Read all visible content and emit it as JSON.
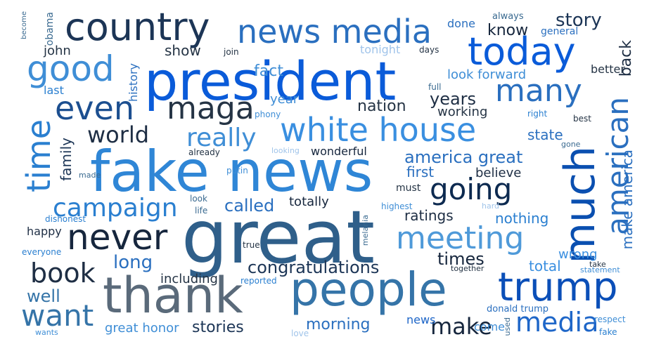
{
  "words": [
    {
      "text": "great",
      "color": "#2f5f8a"
    },
    {
      "text": "fake news",
      "color": "#2f86d6"
    },
    {
      "text": "president",
      "color": "#0a5bd9"
    },
    {
      "text": "people",
      "color": "#3574a8"
    },
    {
      "text": "thank",
      "color": "#5a6a7a"
    },
    {
      "text": "country",
      "color": "#1c3556"
    },
    {
      "text": "news media",
      "color": "#2a6fbf"
    },
    {
      "text": "today",
      "color": "#0a5bd9"
    },
    {
      "text": "trump",
      "color": "#0b4fb8"
    },
    {
      "text": "white house",
      "color": "#3a8fe0"
    },
    {
      "text": "much",
      "color": "#0a4fb0"
    },
    {
      "text": "american",
      "color": "#2a6fbf"
    },
    {
      "text": "never",
      "color": "#16263d"
    },
    {
      "text": "meeting",
      "color": "#4f9ad9"
    },
    {
      "text": "going",
      "color": "#0d2a50"
    },
    {
      "text": "many",
      "color": "#2a6fbf"
    },
    {
      "text": "good",
      "color": "#3f8ed6"
    },
    {
      "text": "even",
      "color": "#1c4f90"
    },
    {
      "text": "maga",
      "color": "#253445"
    },
    {
      "text": "time",
      "color": "#2a7fd0"
    },
    {
      "text": "book",
      "color": "#1e2e44"
    },
    {
      "text": "want",
      "color": "#3574a8"
    },
    {
      "text": "media",
      "color": "#1e66c8"
    },
    {
      "text": "campaign",
      "color": "#2a7fd0"
    },
    {
      "text": "really",
      "color": "#3f8ed6"
    },
    {
      "text": "world",
      "color": "#1e2e44"
    },
    {
      "text": "make",
      "color": "#16263d"
    },
    {
      "text": "congratulations",
      "color": "#1c3556"
    },
    {
      "text": "america great",
      "color": "#2a6fbf"
    },
    {
      "text": "news",
      "color": "#1e66c8"
    },
    {
      "text": "stories",
      "color": "#1c3556"
    },
    {
      "text": "morning",
      "color": "#2a6fbf"
    },
    {
      "text": "long",
      "color": "#2a6fbf"
    },
    {
      "text": "well",
      "color": "#3574a8"
    },
    {
      "text": "called",
      "color": "#2a6fbf"
    },
    {
      "text": "totally",
      "color": "#16263d"
    },
    {
      "text": "story",
      "color": "#1c3556"
    },
    {
      "text": "know",
      "color": "#16263d"
    },
    {
      "text": "show",
      "color": "#253445"
    },
    {
      "text": "fact",
      "color": "#3f8ed6"
    },
    {
      "text": "nation",
      "color": "#253445"
    },
    {
      "text": "years",
      "color": "#1e2e44"
    },
    {
      "text": "first",
      "color": "#2a6fbf"
    },
    {
      "text": "state",
      "color": "#2a6fbf"
    },
    {
      "text": "wonderful",
      "color": "#16263d"
    },
    {
      "text": "ratings",
      "color": "#1e2e44"
    },
    {
      "text": "times",
      "color": "#16263d"
    },
    {
      "text": "total",
      "color": "#3a8fe0"
    },
    {
      "text": "wrong",
      "color": "#3a8fe0"
    },
    {
      "text": "nothing",
      "color": "#2a7fd0"
    },
    {
      "text": "including",
      "color": "#253445"
    },
    {
      "text": "great honor",
      "color": "#3f8ed6"
    },
    {
      "text": "look forward",
      "color": "#3f8ed6"
    },
    {
      "text": "working",
      "color": "#253445"
    },
    {
      "text": "back",
      "color": "#1e2e44"
    },
    {
      "text": "make america",
      "color": "#2a6fbf"
    },
    {
      "text": "family",
      "color": "#1c3556"
    },
    {
      "text": "history",
      "color": "#2a6fbf"
    },
    {
      "text": "year",
      "color": "#3f8ed6"
    },
    {
      "text": "believe",
      "color": "#1e2e44"
    },
    {
      "text": "must",
      "color": "#253445"
    },
    {
      "text": "better",
      "color": "#253445"
    },
    {
      "text": "general",
      "color": "#2a6fbf"
    },
    {
      "text": "tonight",
      "color": "#a0c4ea"
    },
    {
      "text": "john",
      "color": "#253445"
    },
    {
      "text": "last",
      "color": "#2a7fd0"
    },
    {
      "text": "obama",
      "color": "#3a6a90"
    },
    {
      "text": "happy",
      "color": "#1e2e44"
    },
    {
      "text": "done",
      "color": "#2a6fbf"
    },
    {
      "text": "always",
      "color": "#3a6a90"
    },
    {
      "text": "days",
      "color": "#253445"
    },
    {
      "text": "full",
      "color": "#3a6a90"
    },
    {
      "text": "join",
      "color": "#253445"
    },
    {
      "text": "phony",
      "color": "#3f8ed6"
    },
    {
      "text": "right",
      "color": "#2a7fd0"
    },
    {
      "text": "best",
      "color": "#253445"
    },
    {
      "text": "gone",
      "color": "#3a6a90"
    },
    {
      "text": "already",
      "color": "#253445"
    },
    {
      "text": "looking",
      "color": "#a0c4ea"
    },
    {
      "text": "putin",
      "color": "#3f8ed6"
    },
    {
      "text": "made",
      "color": "#3a6a90"
    },
    {
      "text": "look",
      "color": "#3a6a90"
    },
    {
      "text": "life",
      "color": "#3a6a90"
    },
    {
      "text": "dishonest",
      "color": "#2a7fd0"
    },
    {
      "text": "highest",
      "color": "#3f8ed6"
    },
    {
      "text": "hard",
      "color": "#a0c4ea"
    },
    {
      "text": "true",
      "color": "#253445"
    },
    {
      "text": "melania",
      "color": "#3a6a90"
    },
    {
      "text": "everyone",
      "color": "#2a7fd0"
    },
    {
      "text": "reported",
      "color": "#2a7fd0"
    },
    {
      "text": "together",
      "color": "#253445"
    },
    {
      "text": "take",
      "color": "#253445"
    },
    {
      "text": "statement",
      "color": "#3f8ed6"
    },
    {
      "text": "donald trump",
      "color": "#2a6fbf"
    },
    {
      "text": "come",
      "color": "#3f8ed6"
    },
    {
      "text": "used",
      "color": "#3a6a90"
    },
    {
      "text": "respect",
      "color": "#3f8ed6"
    },
    {
      "text": "fake",
      "color": "#2a7fd0"
    },
    {
      "text": "love",
      "color": "#a0c4ea"
    },
    {
      "text": "wants",
      "color": "#3f8ed6"
    },
    {
      "text": "become",
      "color": "#3a6a90"
    }
  ]
}
